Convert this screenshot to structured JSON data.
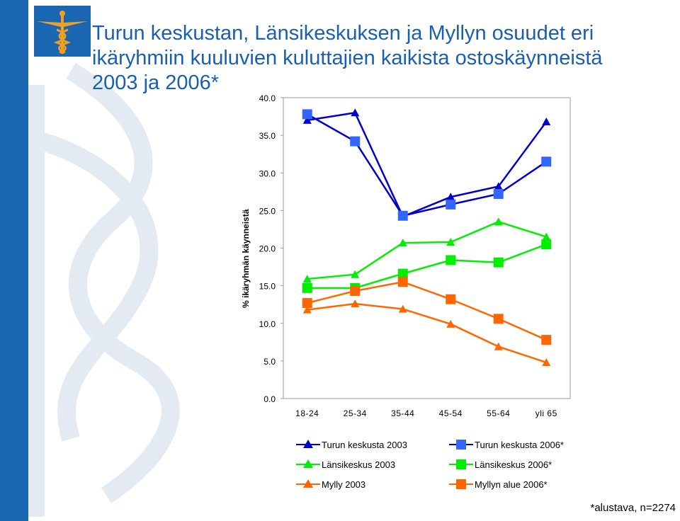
{
  "title_lines": [
    "Turun keskustan, Länsikeskuksen ja Myllyn osuudet eri",
    "ikäryhmiin kuuluvien kuluttajien kaikista ostoskäynneistä",
    "2003 ja 2006*"
  ],
  "footnote": "*alustava, n=2274",
  "colors": {
    "left_bar": "#1a66b3",
    "title": "#1a5fae",
    "blue_dark": "#0000cc",
    "blue_light": "#3366ff",
    "green": "#00ee00",
    "orange": "#ff6600"
  },
  "chart_data": {
    "type": "line",
    "ylabel": "% ikäryhmän käynneistä",
    "ylim": [
      0,
      40
    ],
    "yticks": [
      "0.0",
      "5.0",
      "10.0",
      "15.0",
      "20.0",
      "25.0",
      "30.0",
      "35.0",
      "40.0"
    ],
    "categories": [
      "18-24",
      "25-34",
      "35-44",
      "45-54",
      "55-64",
      "yli 65"
    ],
    "legend_position": "bottom",
    "grid": false,
    "series": [
      {
        "name": "Turun keskusta 2003",
        "marker": "triangle",
        "color": "#0000cc",
        "values": [
          37.0,
          38.0,
          24.2,
          26.8,
          28.2,
          36.8
        ]
      },
      {
        "name": "Turun keskusta 2006*",
        "marker": "square",
        "color": "#3366ff",
        "values": [
          37.8,
          34.2,
          24.3,
          25.8,
          27.2,
          31.5
        ]
      },
      {
        "name": "Länsikeskus 2003",
        "marker": "triangle",
        "color": "#00ee00",
        "values": [
          15.9,
          16.5,
          20.7,
          20.8,
          23.5,
          21.5
        ]
      },
      {
        "name": "Länsikeskus 2006*",
        "marker": "square",
        "color": "#00ee00",
        "values": [
          14.7,
          14.7,
          16.6,
          18.4,
          18.1,
          20.5
        ]
      },
      {
        "name": "Mylly 2003",
        "marker": "triangle",
        "color": "#ff6600",
        "values": [
          11.8,
          12.6,
          11.9,
          9.9,
          6.9,
          4.8
        ]
      },
      {
        "name": "Myllyn alue 2006*",
        "marker": "square",
        "color": "#ff6600",
        "values": [
          12.7,
          14.3,
          15.5,
          13.2,
          10.6,
          7.8
        ]
      }
    ]
  }
}
